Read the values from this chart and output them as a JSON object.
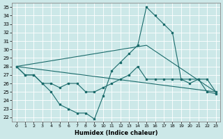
{
  "xlabel": "Humidex (Indice chaleur)",
  "xlim": [
    -0.5,
    23.5
  ],
  "ylim": [
    21.5,
    35.5
  ],
  "yticks": [
    22,
    23,
    24,
    25,
    26,
    27,
    28,
    29,
    30,
    31,
    32,
    33,
    34,
    35
  ],
  "xticks": [
    0,
    1,
    2,
    3,
    4,
    5,
    6,
    7,
    8,
    9,
    10,
    11,
    12,
    13,
    14,
    15,
    16,
    17,
    18,
    19,
    20,
    21,
    22,
    23
  ],
  "background_color": "#cce8e8",
  "grid_color": "#b0d4d4",
  "line_color": "#1a6b6b",
  "lines": [
    {
      "x": [
        0,
        1,
        2,
        3,
        4,
        5,
        6,
        7,
        8,
        9,
        10,
        11,
        12,
        13,
        14,
        15,
        16,
        17,
        18,
        19,
        20,
        21,
        22,
        23
      ],
      "y": [
        28,
        27,
        27,
        26,
        25,
        23.5,
        23,
        22.5,
        22.5,
        21.8,
        24.5,
        27.5,
        28.5,
        29.5,
        30.5,
        35,
        34,
        33,
        32,
        26.5,
        26,
        26.5,
        25,
        24.8
      ],
      "has_markers": true
    },
    {
      "x": [
        0,
        1,
        2,
        3,
        4,
        5,
        6,
        7,
        8,
        9,
        10,
        11,
        12,
        13,
        14,
        15,
        16,
        17,
        18,
        19,
        20,
        21,
        22,
        23
      ],
      "y": [
        28,
        27,
        27,
        26,
        26,
        25.5,
        26,
        26,
        25,
        25,
        25.5,
        26,
        26.5,
        27,
        28,
        26.5,
        26.5,
        26.5,
        26.5,
        26.5,
        26.5,
        26.5,
        26.5,
        25
      ],
      "has_markers": true
    },
    {
      "x": [
        0,
        23
      ],
      "y": [
        28,
        25
      ],
      "has_markers": false
    },
    {
      "x": [
        0,
        15,
        23
      ],
      "y": [
        28,
        30.5,
        25
      ],
      "has_markers": false
    }
  ]
}
